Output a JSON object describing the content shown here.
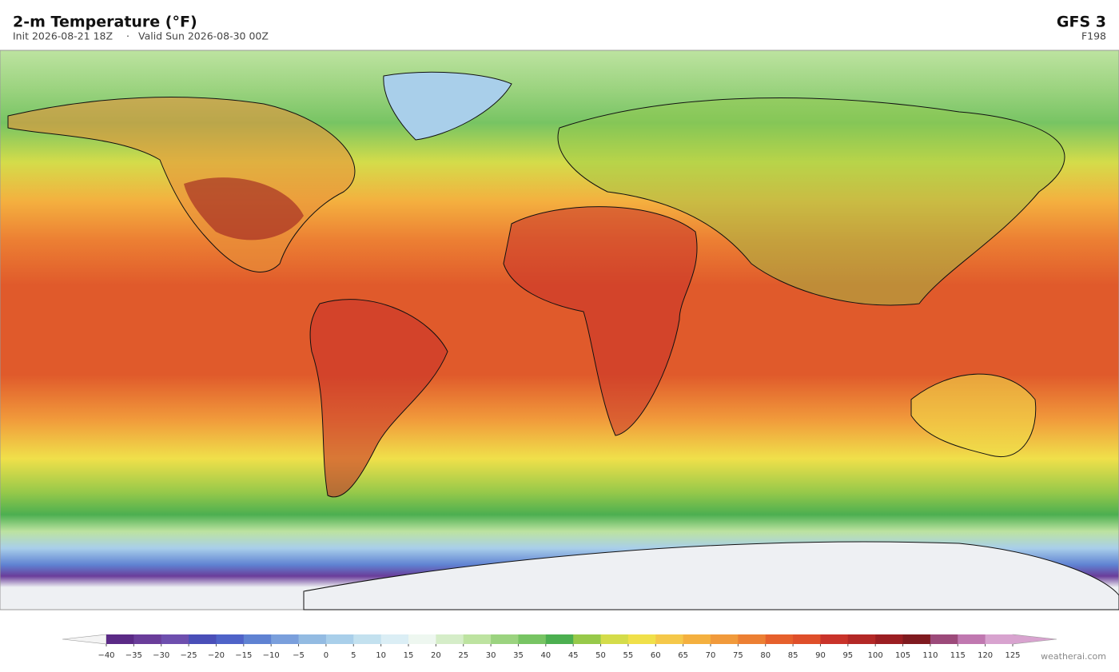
{
  "header": {
    "title": "2-m Temperature  (°F)",
    "init": "Init 2026-08-21 18Z",
    "separator": "·",
    "valid": "Valid Sun 2026-08-30 00Z",
    "model": "GFS  3",
    "forecast_hour": "F198"
  },
  "colorbar": {
    "ticks": [
      {
        "value": -40,
        "label": "−40"
      },
      {
        "value": -35,
        "label": "−35"
      },
      {
        "value": -30,
        "label": "−30"
      },
      {
        "value": -25,
        "label": "−25"
      },
      {
        "value": -20,
        "label": "−20"
      },
      {
        "value": -15,
        "label": "−15"
      },
      {
        "value": -10,
        "label": "−10"
      },
      {
        "value": -5,
        "label": "−5"
      },
      0,
      5,
      10,
      15,
      20,
      25,
      30,
      35,
      40,
      45,
      50,
      55,
      60,
      65,
      70,
      75,
      80,
      85,
      90,
      95,
      100,
      105,
      110,
      115,
      120,
      125
    ],
    "colors": [
      "#5b2a86",
      "#6a3d9a",
      "#6e4fae",
      "#4a4fb8",
      "#4f63c8",
      "#5f82d2",
      "#7a9fdc",
      "#93bbe2",
      "#a9cfea",
      "#c3e1ef",
      "#dbeef5",
      "#eef7f0",
      "#d5edc8",
      "#bde3a0",
      "#9bd37f",
      "#77c463",
      "#4caf50",
      "#97c94a",
      "#d4dc4a",
      "#f0e04a",
      "#f5c84a",
      "#f4b03f",
      "#f19a3b",
      "#ec7f33",
      "#e6602c",
      "#df4f2a",
      "#c9332a",
      "#b32826",
      "#9b1e22",
      "#7f1a1f",
      "#9c4a7a",
      "#c078b0",
      "#d8a3cf"
    ],
    "under_color": "#f4f4f4",
    "over_color": "#d8a3cf"
  },
  "watermark": "weatherai.com"
}
